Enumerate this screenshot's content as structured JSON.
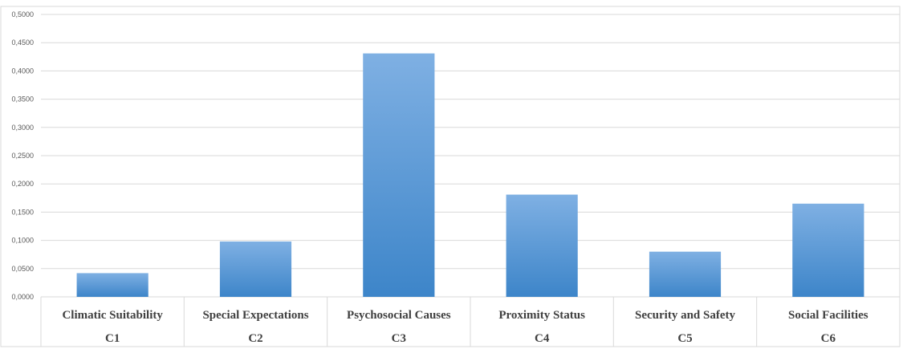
{
  "chart_data": {
    "type": "bar",
    "categories": [
      "Climatic Suitability",
      "Special Expectations",
      "Psychosocial Causes",
      "Proximity Status",
      "Security and Safety",
      "Social Facilities"
    ],
    "category_codes": [
      "C1",
      "C2",
      "C3",
      "C4",
      "C5",
      "C6"
    ],
    "values": [
      0.042,
      0.098,
      0.431,
      0.181,
      0.08,
      0.165
    ],
    "title": "",
    "xlabel": "",
    "ylabel": "",
    "ylim": [
      0,
      0.5
    ],
    "yticks": [
      "0,0000",
      "0,0500",
      "0,1000",
      "0,1500",
      "0,2000",
      "0,2500",
      "0,3000",
      "0,3500",
      "0,4000",
      "0,4500",
      "0,5000"
    ],
    "grid": true,
    "legend": "none",
    "colors": {
      "bar_light": "#7fb0e3",
      "bar_dark": "#3d85c9",
      "grid": "#d9d9d9",
      "axis_text": "#595959",
      "label_text": "#404040"
    }
  }
}
